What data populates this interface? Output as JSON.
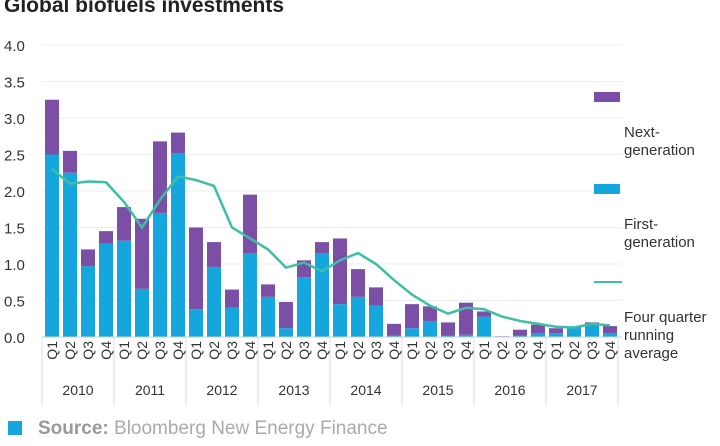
{
  "chart_data": {
    "type": "bar",
    "stacked": true,
    "title": "Global biofuels investments",
    "xlabel": "",
    "ylabel": "",
    "ylim": [
      0,
      4.0
    ],
    "yticks": [
      "0.0",
      "0.5",
      "1.0",
      "1.5",
      "2.0",
      "2.5",
      "3.0",
      "3.5",
      "4.0"
    ],
    "grid": true,
    "legend_position": "right",
    "years": [
      "2010",
      "2011",
      "2012",
      "2013",
      "2014",
      "2015",
      "2016",
      "2017"
    ],
    "quarters": [
      "Q1",
      "Q2",
      "Q3",
      "Q4"
    ],
    "series": [
      {
        "name": "First-generation",
        "color": "#14a6dc",
        "values": [
          2.5,
          2.25,
          0.97,
          1.28,
          1.32,
          0.66,
          1.7,
          2.52,
          0.38,
          0.96,
          0.4,
          1.15,
          0.55,
          0.12,
          0.82,
          1.15,
          0.45,
          0.55,
          0.43,
          0.02,
          0.12,
          0.22,
          0.02,
          0.03,
          0.28,
          0.0,
          0.02,
          0.05,
          0.05,
          0.12,
          0.18,
          0.05
        ]
      },
      {
        "name": "Next-generation",
        "color": "#7b4fa6",
        "values": [
          0.75,
          0.3,
          0.23,
          0.17,
          0.46,
          0.96,
          0.98,
          0.28,
          1.12,
          0.34,
          0.25,
          0.8,
          0.17,
          0.36,
          0.23,
          0.15,
          0.9,
          0.38,
          0.25,
          0.16,
          0.33,
          0.2,
          0.18,
          0.44,
          0.07,
          0.01,
          0.08,
          0.12,
          0.07,
          0.02,
          0.02,
          0.1
        ]
      },
      {
        "name": "Four quarter running average",
        "color": "#3dbfa6",
        "type": "line",
        "values": [
          2.3,
          2.1,
          2.13,
          2.12,
          1.85,
          1.5,
          1.88,
          2.2,
          2.15,
          2.07,
          1.5,
          1.35,
          1.2,
          0.95,
          1.02,
          0.9,
          1.05,
          1.15,
          1.0,
          0.78,
          0.58,
          0.43,
          0.32,
          0.4,
          0.38,
          0.28,
          0.22,
          0.18,
          0.14,
          0.13,
          0.18,
          0.16
        ]
      }
    ],
    "legend": [
      {
        "label": "Next-\ngeneration",
        "color": "#7b4fa6",
        "kind": "box"
      },
      {
        "label": "First-\ngeneration",
        "color": "#14a6dc",
        "kind": "box"
      },
      {
        "label": "Four quarter\nrunning\naverage",
        "color": "#3dbfa6",
        "kind": "line"
      }
    ]
  },
  "source": {
    "label": "Source:",
    "text": " Bloomberg New Energy Finance",
    "icon_color": "#14a6dc"
  }
}
